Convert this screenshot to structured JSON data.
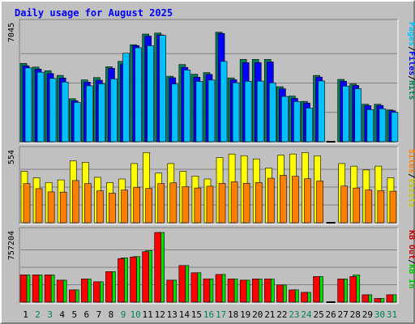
{
  "chart_data": {
    "type": "bar",
    "title": "Daily usage for August 2025",
    "days": [
      "1",
      "2",
      "3",
      "4",
      "5",
      "6",
      "7",
      "8",
      "9",
      "10",
      "11",
      "12",
      "13",
      "14",
      "15",
      "16",
      "17",
      "18",
      "19",
      "20",
      "21",
      "22",
      "23",
      "24",
      "25",
      "26",
      "27",
      "28",
      "29",
      "30",
      "31"
    ],
    "weekend_days": [
      "2",
      "3",
      "9",
      "10",
      "16",
      "17",
      "23",
      "24",
      "30",
      "31"
    ],
    "colors": {
      "hits": "#00805c",
      "files": "#0000ff",
      "pages": "#00c0ff",
      "visits": "#ffff00",
      "sites": "#ff8000",
      "kbin": "#00e000",
      "kbout": "#ff0000",
      "title": "#0000ff",
      "weekday_label": "#000000",
      "weekend_label": "#00805c",
      "plot_bg": "#c0c0c0",
      "grid": "#808080"
    },
    "panels": [
      {
        "id": "hits",
        "max_label": "7045",
        "ymax": 7045,
        "legend": [
          {
            "text": "Hits",
            "color": "#00805c"
          },
          {
            "text": "/",
            "color": "#000000"
          },
          {
            "text": "Files",
            "color": "#0000ff"
          },
          {
            "text": "/",
            "color": "#000000"
          },
          {
            "text": "Pages",
            "color": "#00c0ff"
          }
        ],
        "series": [
          {
            "name": "Hits",
            "color": "#00805c",
            "values": [
              4700,
              4480,
              4260,
              3980,
              2580,
              3710,
              3850,
              4500,
              4820,
              5820,
              6460,
              6520,
              3930,
              4630,
              4050,
              4150,
              6570,
              3830,
              4940,
              4940,
              4940,
              3300,
              2740,
              2420,
              3980,
              0,
              3740,
              3470,
              2250,
              2250,
              1910
            ]
          },
          {
            "name": "Files",
            "color": "#0000ff",
            "values": [
              4560,
              4360,
              4090,
              3820,
              2460,
              3580,
              3690,
              4410,
              4660,
              5770,
              6340,
              6410,
              3840,
              4460,
              3870,
              4040,
              6500,
              3720,
              4750,
              4750,
              4790,
              3180,
              2600,
              2320,
              3880,
              0,
              3630,
              3380,
              2170,
              2180,
              1860
            ]
          },
          {
            "name": "Pages",
            "color": "#00c0ff",
            "values": [
              4430,
              4170,
              3800,
              3580,
              2360,
              3360,
              3480,
              3770,
              5310,
              5640,
              5760,
              6380,
              3460,
              4300,
              3620,
              3700,
              4820,
              3540,
              3630,
              3640,
              3530,
              2720,
              2410,
              2020,
              3650,
              0,
              3340,
              3180,
              1930,
              1980,
              1770
            ]
          }
        ]
      },
      {
        "id": "visits",
        "max_label": "554",
        "ymax": 554,
        "legend": [
          {
            "text": "Visits",
            "color": "#c8c800"
          },
          {
            "text": "/",
            "color": "#000000"
          },
          {
            "text": "Sites",
            "color": "#ff8000"
          }
        ],
        "series": [
          {
            "name": "Visits",
            "color": "#ffff00",
            "values": [
              400,
              349,
              313,
              333,
              480,
              470,
              353,
              313,
              340,
              460,
              546,
              386,
              460,
              400,
              363,
              340,
              506,
              534,
              521,
              496,
              425,
              526,
              534,
              546,
              520,
              0,
              460,
              440,
              410,
              440,
              350
            ]
          },
          {
            "name": "Sites",
            "color": "#ff8000",
            "values": [
              304,
              265,
              240,
              238,
              328,
              304,
              248,
              230,
              254,
              276,
              266,
              304,
              310,
              280,
              270,
              284,
              306,
              318,
              307,
              312,
              346,
              368,
              361,
              342,
              324,
              0,
              285,
              270,
              255,
              250,
              245
            ]
          }
        ]
      },
      {
        "id": "kb",
        "max_label": "757204",
        "ymax": 757204,
        "legend": [
          {
            "text": "KB In",
            "color": "#00c000"
          },
          {
            "text": "/",
            "color": "#000000"
          },
          {
            "text": "KB Out",
            "color": "#c00000"
          }
        ],
        "series": [
          {
            "name": "KB In",
            "color": "#00e000",
            "values": [
              296000,
              296000,
              296000,
              239000,
              133000,
              252000,
              221000,
              331000,
              481000,
              495000,
              559000,
              757204,
              239000,
              398000,
              319000,
              253000,
              301000,
              252000,
              239000,
              252000,
              252000,
              186000,
              133000,
              106000,
              279000,
              0,
              252000,
              296000,
              80000,
              40000,
              80000
            ]
          },
          {
            "name": "KB Out",
            "color": "#ff0000",
            "values": [
              296000,
              296000,
              296000,
              239000,
              133000,
              252000,
              221000,
              331000,
              474000,
              491000,
              548000,
              757204,
              239000,
              398000,
              319000,
              253000,
              301000,
              252000,
              239000,
              252000,
              252000,
              186000,
              133000,
              106000,
              279000,
              0,
              252000,
              279000,
              80000,
              40000,
              80000
            ]
          }
        ]
      }
    ]
  }
}
